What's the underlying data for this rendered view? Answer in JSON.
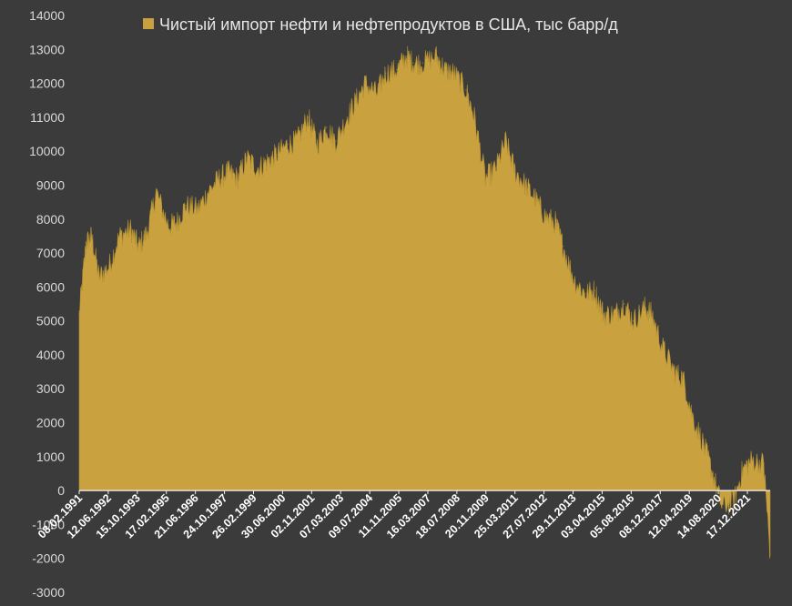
{
  "chart_data": {
    "type": "area",
    "title": "",
    "xlabel": "",
    "ylabel": "",
    "ylim": [
      -3000,
      14000
    ],
    "yticks": [
      14000,
      13000,
      12000,
      11000,
      10000,
      9000,
      8000,
      7000,
      6000,
      5000,
      4000,
      3000,
      2000,
      1000,
      0,
      -1000,
      -2000,
      -3000
    ],
    "grid": false,
    "legend": "top-center",
    "colors": {
      "fill": "#c9a23f",
      "stroke": "#b28f33",
      "background": "#3b3b3b",
      "axis": "#f2f2f2"
    },
    "series": [
      {
        "name": "Чистый импорт нефти и нефтепродуктов в США, тыс барр/д",
        "x": [
          "1991-02-08",
          "1991-06-01",
          "1991-09-01",
          "1992-01-01",
          "1992-06-12",
          "1992-12-01",
          "1993-06-01",
          "1993-10-15",
          "1994-03-01",
          "1994-08-01",
          "1995-02-17",
          "1995-07-01",
          "1995-12-01",
          "1996-06-21",
          "1996-12-01",
          "1997-06-01",
          "1997-10-24",
          "1998-04-01",
          "1998-09-01",
          "1999-02-26",
          "1999-08-01",
          "2000-01-01",
          "2000-06-30",
          "2000-12-01",
          "2001-06-01",
          "2001-11-02",
          "2002-04-01",
          "2002-09-01",
          "2003-03-07",
          "2003-08-01",
          "2004-01-01",
          "2004-07-09",
          "2004-12-01",
          "2005-06-01",
          "2005-11-11",
          "2006-03-01",
          "2006-08-01",
          "2007-03-16",
          "2007-08-01",
          "2008-01-01",
          "2008-07-18",
          "2008-12-01",
          "2009-06-01",
          "2009-11-20",
          "2010-05-01",
          "2010-10-01",
          "2011-03-25",
          "2011-09-01",
          "2012-02-01",
          "2012-07-27",
          "2012-12-01",
          "2013-06-01",
          "2013-11-29",
          "2014-05-01",
          "2014-10-01",
          "2015-04-03",
          "2015-09-01",
          "2016-02-01",
          "2016-08-05",
          "2016-12-01",
          "2017-06-01",
          "2017-12-08",
          "2018-05-01",
          "2018-10-01",
          "2019-04-12",
          "2019-09-01",
          "2020-02-01",
          "2020-08-14",
          "2021-01-01",
          "2021-06-01",
          "2021-12-17",
          "2022-04-01"
        ],
        "values": [
          5200,
          7300,
          7500,
          6300,
          6600,
          7500,
          7700,
          7200,
          7600,
          8800,
          7800,
          7900,
          8400,
          8300,
          8800,
          9200,
          9400,
          9200,
          9800,
          9500,
          9700,
          9900,
          10200,
          10300,
          11000,
          10200,
          10700,
          10300,
          11000,
          11500,
          12000,
          11700,
          12300,
          12400,
          12800,
          12600,
          12600,
          12800,
          12400,
          12300,
          11800,
          11000,
          9200,
          9500,
          10300,
          9400,
          9000,
          8600,
          8100,
          7900,
          7200,
          6200,
          5800,
          5900,
          5200,
          5200,
          5500,
          5000,
          5400,
          5200,
          4200,
          3500,
          3300,
          2200,
          1300,
          500,
          -500,
          -300,
          600,
          900,
          800,
          -1900
        ]
      }
    ],
    "xtick_labels": [
      "08.02.1991",
      "12.06.1992",
      "15.10.1993",
      "17.02.1995",
      "21.06.1996",
      "24.10.1997",
      "26.02.1999",
      "30.06.2000",
      "02.11.2001",
      "07.03.2003",
      "09.07.2004",
      "11.11.2005",
      "16.03.2007",
      "18.07.2008",
      "20.11.2009",
      "25.03.2011",
      "27.07.2012",
      "29.11.2013",
      "03.04.2015",
      "05.08.2016",
      "08.12.2017",
      "12.04.2019",
      "14.08.2020",
      "17.12.2021"
    ]
  }
}
